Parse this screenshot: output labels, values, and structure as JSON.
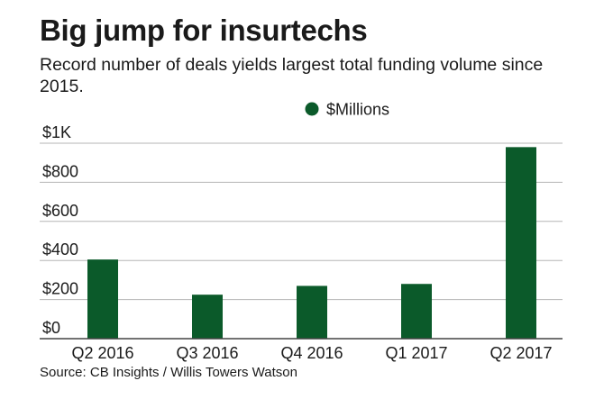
{
  "colors": {
    "bar": "#0b5a2a",
    "grid": "#b5b5b5",
    "axis": "#444444"
  },
  "chart_data": {
    "type": "bar",
    "title": "Big jump for insurtechs",
    "subtitle": "Record number of deals yields largest total funding volume since 2015.",
    "categories": [
      "Q2 2016",
      "Q3 2016",
      "Q4 2016",
      "Q1 2017",
      "Q2 2017"
    ],
    "series": [
      {
        "name": "$Millions",
        "values": [
          405,
          225,
          270,
          280,
          980
        ]
      }
    ],
    "ylim": [
      0,
      1000
    ],
    "yticks": [
      0,
      200,
      400,
      600,
      800,
      1000
    ],
    "ytick_labels": [
      "$0",
      "$200",
      "$400",
      "$600",
      "$800",
      "$1K"
    ],
    "legend_position": "top-center",
    "grid": true,
    "xlabel": "",
    "ylabel": "",
    "source": "Source: CB Insights / Willis Towers Watson"
  }
}
